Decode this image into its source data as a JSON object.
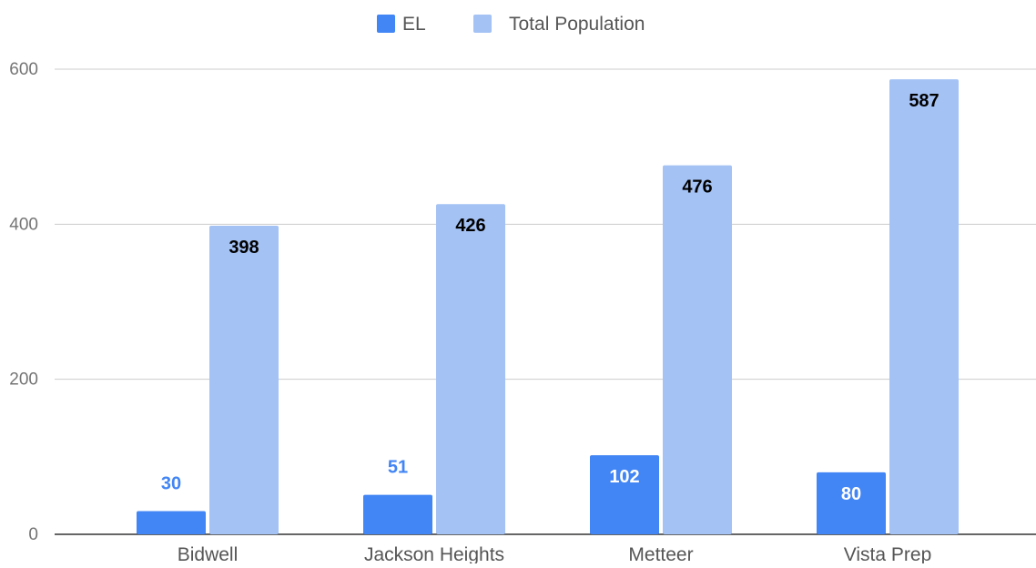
{
  "chart_data": {
    "type": "bar",
    "title": "",
    "xlabel": "",
    "ylabel": "",
    "categories": [
      "Bidwell",
      "Jackson Heights",
      "Metteer",
      "Vista Prep"
    ],
    "series": [
      {
        "name": "EL",
        "values": [
          30,
          51,
          102,
          80
        ],
        "color": "#4285f4"
      },
      {
        "name": "Total Population",
        "values": [
          398,
          426,
          476,
          587
        ],
        "color": "#a4c2f4"
      }
    ],
    "ylim": [
      0,
      600
    ],
    "yticks": [
      "0",
      "200",
      "400",
      "600"
    ],
    "grid": true,
    "legend_position": "top-center",
    "label_colors": {
      "outside": "#4285f4",
      "inside_dark_bar": "#ffffff",
      "inside_light_bar": "#000000"
    }
  }
}
